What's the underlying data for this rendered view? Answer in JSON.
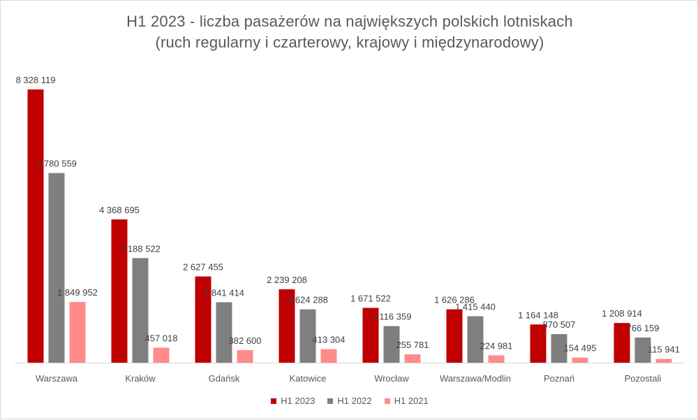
{
  "chart_data": {
    "type": "bar",
    "title_line1": "H1 2023 - liczba pasażerów na największych polskich lotniskach",
    "title_line2": "(ruch regularny i czarterowy, krajowy i międzynarodowy)",
    "categories": [
      "Warszawa",
      "Kraków",
      "Gdańsk",
      "Katowice",
      "Wrocław",
      "Warszawa/Modlin",
      "Poznań",
      "Pozostali"
    ],
    "series": [
      {
        "name": "H1 2023",
        "color": "#c00000",
        "values": [
          8328119,
          4368695,
          2627455,
          2239208,
          1671522,
          1626286,
          1164148,
          1208914
        ],
        "labels": [
          "8 328 119",
          "4 368 695",
          "2 627 455",
          "2 239 208",
          "1 671 522",
          "1 626 286",
          "1 164 148",
          "1 208 914"
        ]
      },
      {
        "name": "H1 2022",
        "color": "#7f7f7f",
        "values": [
          5780559,
          3188522,
          1841414,
          1624288,
          1116359,
          1415440,
          870507,
          766159
        ],
        "labels": [
          "5 780 559",
          "3 188 522",
          "1 841 414",
          "1 624 288",
          "1 116 359",
          "1 415 440",
          "870 507",
          "766 159"
        ]
      },
      {
        "name": "H1 2021",
        "color": "#ff8b8b",
        "values": [
          1849952,
          457018,
          382600,
          413304,
          255781,
          224981,
          154495,
          115941
        ],
        "labels": [
          "1 849 952",
          "457 018",
          "382 600",
          "413 304",
          "255 781",
          "224 981",
          "154 495",
          "115 941"
        ]
      }
    ],
    "ylim": [
      0,
      8328119
    ],
    "grid": false,
    "legend_position": "bottom"
  }
}
